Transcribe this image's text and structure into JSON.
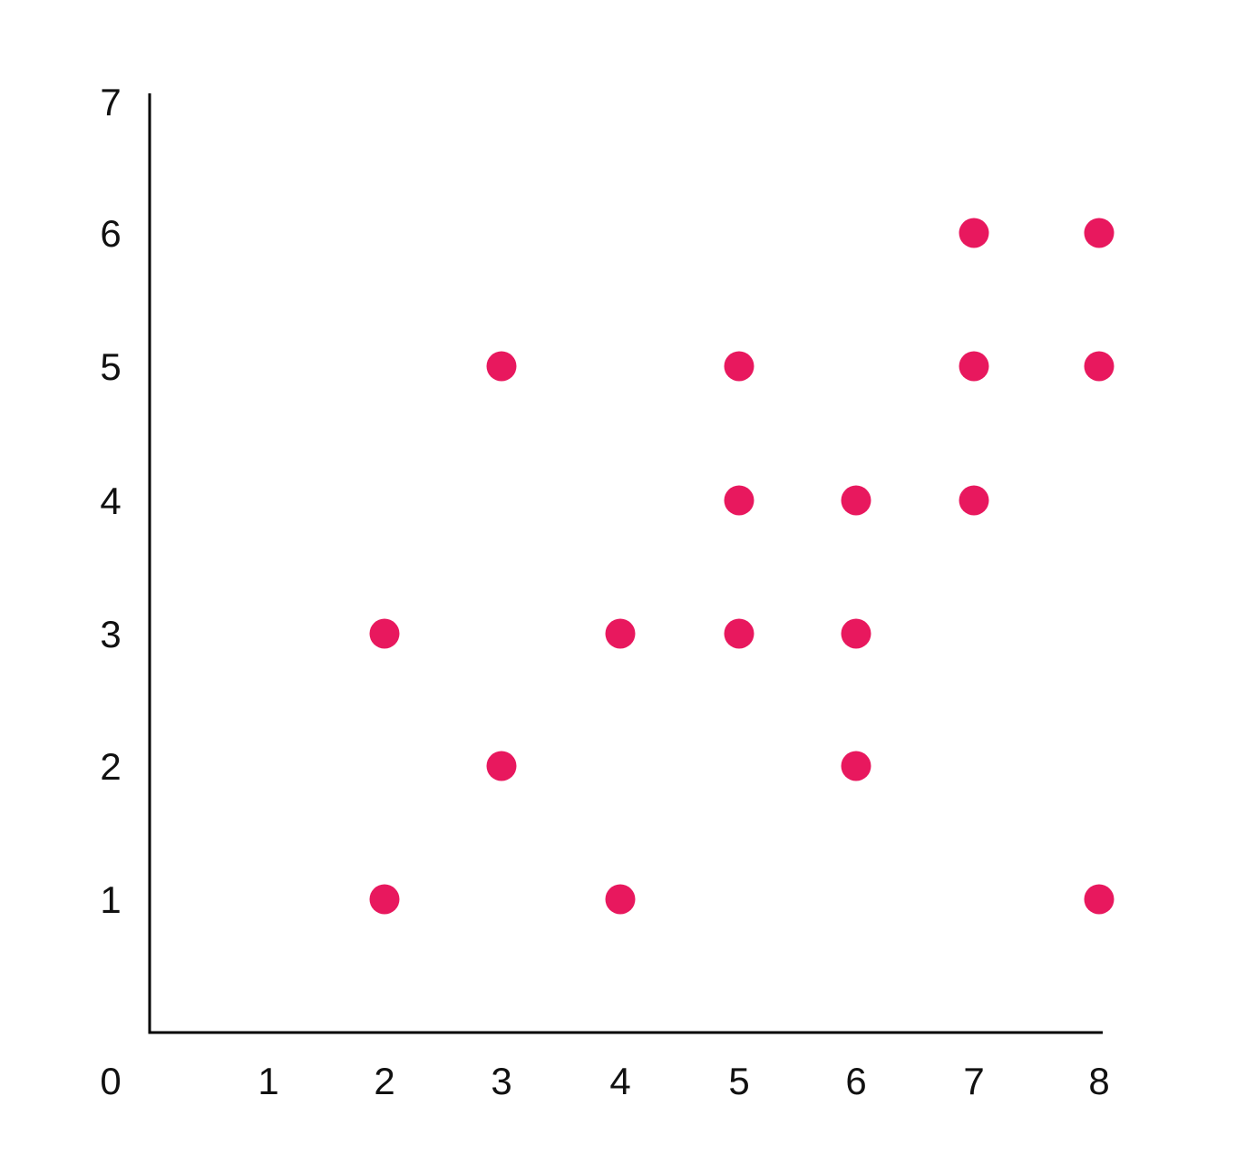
{
  "chart_data": {
    "type": "scatter",
    "title": "",
    "xlabel": "",
    "ylabel": "",
    "xlim": [
      0,
      8
    ],
    "ylim": [
      0,
      7
    ],
    "grid": false,
    "x_ticks": [
      "0",
      "1",
      "2",
      "3",
      "4",
      "5",
      "6",
      "7",
      "8"
    ],
    "y_ticks": [
      "1",
      "2",
      "3",
      "4",
      "5",
      "6",
      "7"
    ],
    "series": [
      {
        "color": "#e8185e",
        "points": [
          {
            "x": 2,
            "y": 1
          },
          {
            "x": 2,
            "y": 3
          },
          {
            "x": 3,
            "y": 2
          },
          {
            "x": 3,
            "y": 5
          },
          {
            "x": 4,
            "y": 1
          },
          {
            "x": 4,
            "y": 3
          },
          {
            "x": 5,
            "y": 3
          },
          {
            "x": 5,
            "y": 4
          },
          {
            "x": 5,
            "y": 5
          },
          {
            "x": 6,
            "y": 2
          },
          {
            "x": 6,
            "y": 3
          },
          {
            "x": 6,
            "y": 4
          },
          {
            "x": 7,
            "y": 4
          },
          {
            "x": 7,
            "y": 5
          },
          {
            "x": 7,
            "y": 6
          },
          {
            "x": 8,
            "y": 1
          },
          {
            "x": 8,
            "y": 5
          },
          {
            "x": 8,
            "y": 6
          }
        ]
      }
    ]
  }
}
